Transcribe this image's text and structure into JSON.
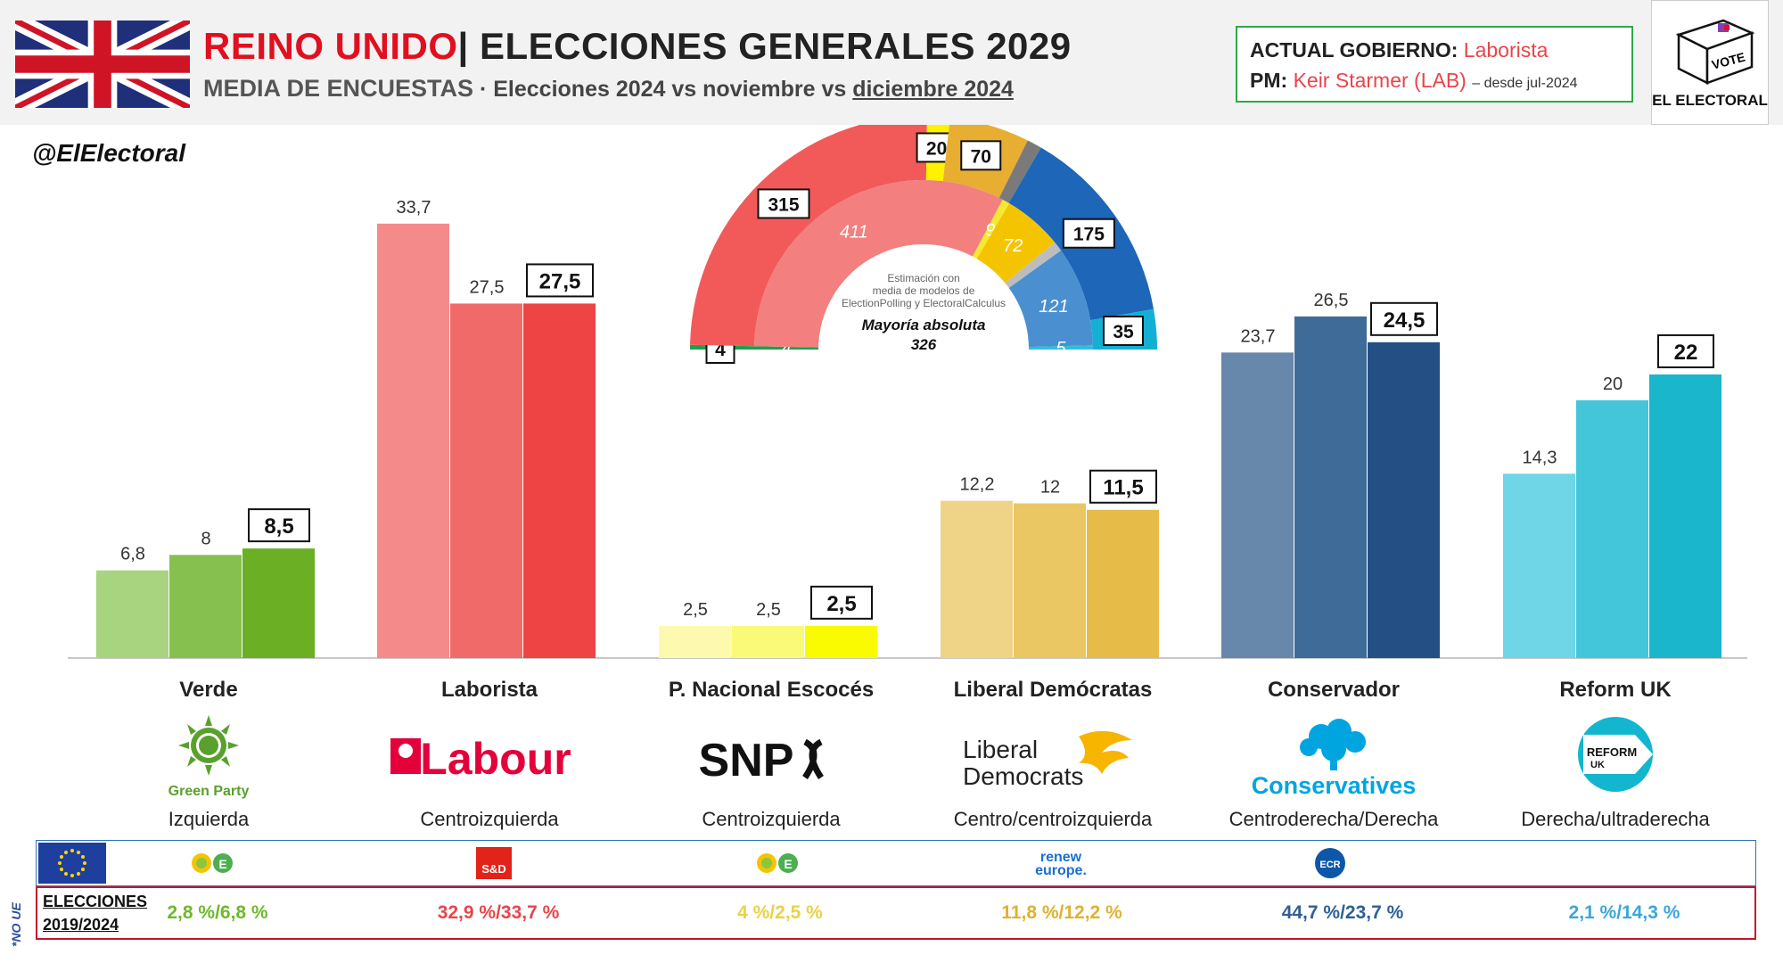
{
  "header": {
    "title_country": "REINO UNIDO",
    "title_sep": "| ",
    "title_rest": "ELECCIONES GENERALES 2029",
    "subtitle_main": "MEDIA DE ENCUESTAS",
    "subtitle_dot": " · ",
    "subtitle_a": "Elecciones 2024 vs noviembre vs ",
    "subtitle_b": "diciembre 2024"
  },
  "government": {
    "label_gov": "ACTUAL GOBIERNO:",
    "gov_value": "Laborista",
    "label_pm": "PM:",
    "pm_value": "Keir Starmer (LAB)",
    "pm_since": "– desde jul-2024"
  },
  "brand": {
    "vote": "VOTE",
    "name": "EL ELECTORAL",
    "handle": "@ElElectoral"
  },
  "colors": {
    "verde": [
      "#a8d37f",
      "#86c04f",
      "#6aaf24"
    ],
    "laborista": [
      "#f58a8a",
      "#f06a6a",
      "#ee4444"
    ],
    "snp": [
      "#fdfab0",
      "#fafa78",
      "#fafa00"
    ],
    "libdem": [
      "#efd488",
      "#ebc764",
      "#e6bb48"
    ],
    "conservador": [
      "#6787ab",
      "#3f6b99",
      "#244f85"
    ],
    "reform": [
      "#6ed6e6",
      "#44c6da",
      "#19b6cc"
    ]
  },
  "chart_data": {
    "type": "bar",
    "categories": [
      "Verde",
      "Laborista",
      "P. Nacional Escocés",
      "Liberal Demócratas",
      "Conservador",
      "Reform UK"
    ],
    "series": [
      {
        "name": "Elecciones 2024",
        "values": [
          6.8,
          33.7,
          2.5,
          12.2,
          23.7,
          14.3
        ]
      },
      {
        "name": "noviembre",
        "values": [
          8,
          27.5,
          2.5,
          12,
          26.5,
          20
        ]
      },
      {
        "name": "diciembre 2024",
        "values": [
          8.5,
          27.5,
          2.5,
          11.5,
          24.5,
          22
        ]
      }
    ],
    "value_labels": [
      [
        "6,8",
        "8",
        "8,5"
      ],
      [
        "33,7",
        "27,5",
        "27,5"
      ],
      [
        "2,5",
        "2,5",
        "2,5"
      ],
      [
        "12,2",
        "12",
        "11,5"
      ],
      [
        "23,7",
        "26,5",
        "24,5"
      ],
      [
        "14,3",
        "20",
        "22"
      ]
    ],
    "ylim": [
      0,
      35
    ],
    "grid": false
  },
  "seats": {
    "outer": {
      "values": [
        4,
        315,
        20,
        70,
        13,
        175,
        35
      ],
      "labels": [
        "4",
        "315",
        "20",
        "70",
        "",
        "175",
        "35"
      ],
      "colors": [
        "#1aa24a",
        "#f25a5a",
        "#fff200",
        "#e8ae32",
        "#7a7a7a",
        "#1d66b8",
        "#14b0d4"
      ]
    },
    "inner": {
      "values": [
        4,
        411,
        9,
        72,
        12,
        121,
        5
      ],
      "labels": [
        "4",
        "411",
        "9",
        "72",
        "",
        "121",
        "5"
      ],
      "colors": [
        "#1aa24a",
        "#f47f7f",
        "#f6e930",
        "#f5c400",
        "#bdbdbd",
        "#4a90d0",
        "#30bfd9"
      ]
    },
    "note": [
      "Estimación con",
      "media de modelos de",
      "ElectionPolling y ElectoralCalculus"
    ],
    "majority_label": "Mayoría absoluta",
    "majority_value": "326"
  },
  "parties": [
    {
      "name": "Verde",
      "ideology": "Izquierda",
      "logo_text": "Green Party",
      "result": "2,8 %/6,8 %",
      "result_color": "#6fb82e"
    },
    {
      "name": "Laborista",
      "ideology": "Centroizquierda",
      "logo_text": "Labour",
      "result": "32,9 %/33,7 %",
      "result_color": "#e8454b"
    },
    {
      "name": "P. Nacional Escocés",
      "ideology": "Centroizquierda",
      "logo_text": "SNP",
      "result": "4 %/2,5 %",
      "result_color": "#e8d24a"
    },
    {
      "name": "Liberal Demócratas",
      "ideology": "Centro/centroizquierda",
      "logo_text_1": "Liberal",
      "logo_text_2": "Democrats",
      "result": "11,8 %/12,2 %",
      "result_color": "#e0b030"
    },
    {
      "name": "Conservador",
      "ideology": "Centroderecha/Derecha",
      "logo_text": "Conservatives",
      "result": "44,7 %/23,7 %",
      "result_color": "#2f5f96"
    },
    {
      "name": "Reform UK",
      "ideology": "Derecha/ultraderecha",
      "logo_text_1": "REFORM",
      "logo_text_2": "UK",
      "result": "2,1 %/14,3 %",
      "result_color": "#3aa6dd"
    }
  ],
  "eu_row": {
    "no_ue": "*NO UE",
    "groups": [
      "",
      "S&D",
      "",
      "renew europe.",
      "ECR",
      ""
    ]
  },
  "results_row": {
    "label_1": "ELECCIONES",
    "label_2": "2019/2024"
  }
}
